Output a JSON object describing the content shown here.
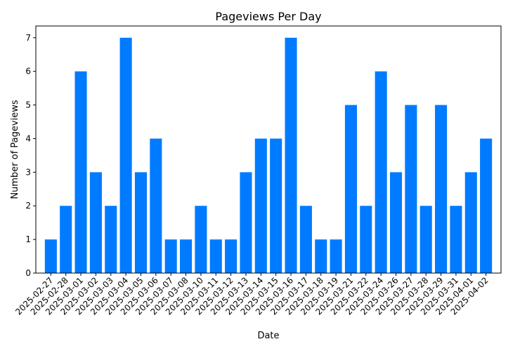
{
  "chart_data": {
    "type": "bar",
    "title": "Pageviews Per Day",
    "xlabel": "Date",
    "ylabel": "Number of Pageviews",
    "ylim": [
      0,
      7.35
    ],
    "yticks": [
      0,
      1,
      2,
      3,
      4,
      5,
      6,
      7
    ],
    "categories": [
      "2025-02-27",
      "2025-02-28",
      "2025-03-01",
      "2025-03-02",
      "2025-03-03",
      "2025-03-04",
      "2025-03-05",
      "2025-03-06",
      "2025-03-07",
      "2025-03-08",
      "2025-03-10",
      "2025-03-11",
      "2025-03-12",
      "2025-03-13",
      "2025-03-14",
      "2025-03-15",
      "2025-03-16",
      "2025-03-17",
      "2025-03-18",
      "2025-03-19",
      "2025-03-21",
      "2025-03-22",
      "2025-03-24",
      "2025-03-26",
      "2025-03-27",
      "2025-03-28",
      "2025-03-29",
      "2025-03-31",
      "2025-04-01",
      "2025-04-02"
    ],
    "values": [
      1,
      2,
      6,
      3,
      2,
      7,
      3,
      4,
      1,
      1,
      2,
      1,
      1,
      3,
      4,
      4,
      7,
      2,
      1,
      1,
      5,
      2,
      6,
      3,
      5,
      2,
      5,
      2,
      3,
      4
    ],
    "bar_color": "#007bff",
    "grid": false,
    "legend": "none"
  }
}
